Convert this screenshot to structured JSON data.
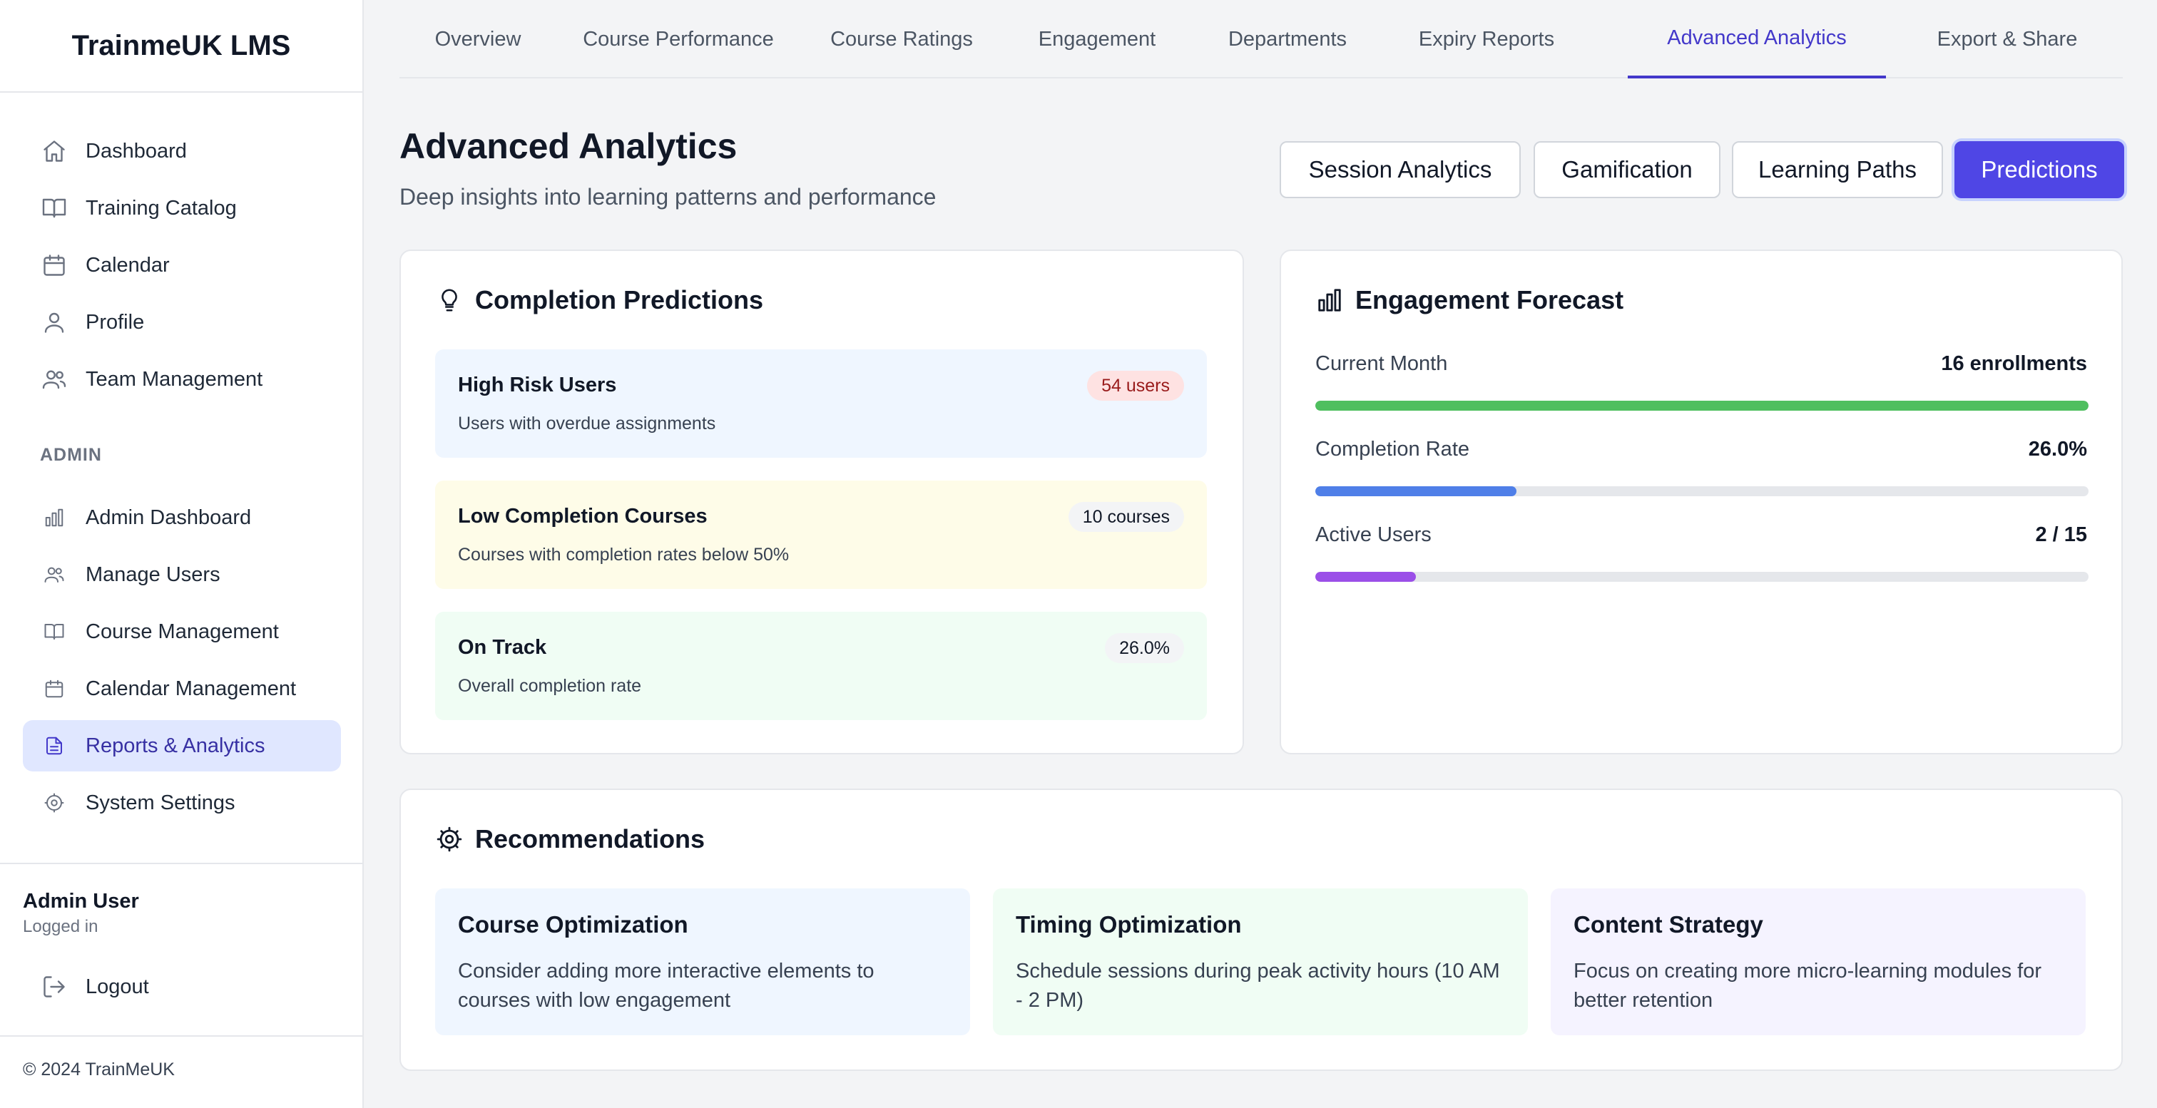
{
  "app": {
    "brand": "TrainmeUK LMS",
    "copyright": "© 2024 TrainMeUK"
  },
  "sidebar": {
    "items": [
      {
        "label": "Dashboard",
        "icon": "home-icon"
      },
      {
        "label": "Training Catalog",
        "icon": "book-icon"
      },
      {
        "label": "Calendar",
        "icon": "calendar-icon"
      },
      {
        "label": "Profile",
        "icon": "user-icon"
      },
      {
        "label": "Team Management",
        "icon": "users-icon"
      }
    ],
    "admin_label": "ADMIN",
    "admin_items": [
      {
        "label": "Admin Dashboard",
        "icon": "bar-chart-icon"
      },
      {
        "label": "Manage Users",
        "icon": "users-icon"
      },
      {
        "label": "Course Management",
        "icon": "book-icon"
      },
      {
        "label": "Calendar Management",
        "icon": "calendar-icon"
      },
      {
        "label": "Reports & Analytics",
        "icon": "file-text-icon",
        "active": true
      },
      {
        "label": "System Settings",
        "icon": "settings-icon"
      }
    ],
    "user": {
      "name": "Admin User",
      "status": "Logged in"
    },
    "logout_label": "Logout"
  },
  "tabs": [
    {
      "label": "Overview"
    },
    {
      "label": "Course Performance"
    },
    {
      "label": "Course Ratings"
    },
    {
      "label": "Engagement"
    },
    {
      "label": "Departments"
    },
    {
      "label": "Expiry Reports"
    },
    {
      "label": "Advanced Analytics",
      "active": true
    },
    {
      "label": "Export & Share"
    }
  ],
  "header": {
    "title": "Advanced Analytics",
    "subtitle": "Deep insights into learning patterns and performance",
    "segments": [
      "Session Analytics",
      "Gamification",
      "Learning Paths",
      "Predictions"
    ],
    "active_segment": "Predictions"
  },
  "predictions": {
    "title": "Completion Predictions",
    "icon": "lightbulb-icon",
    "items": [
      {
        "label": "High Risk Users",
        "desc": "Users with overdue assignments",
        "badge": "54 users"
      },
      {
        "label": "Low Completion Courses",
        "desc": "Courses with completion rates below 50%",
        "badge": "10 courses"
      },
      {
        "label": "On Track",
        "desc": "Overall completion rate",
        "badge": "26.0%"
      }
    ]
  },
  "forecast": {
    "title": "Engagement Forecast",
    "icon": "bar-chart-icon",
    "metrics": [
      {
        "label": "Current Month",
        "value": "16 enrollments",
        "fill": 1.0,
        "color": "#4fbf5f"
      },
      {
        "label": "Completion Rate",
        "value": "26.0%",
        "fill": 0.26,
        "color": "#4f7fe8"
      },
      {
        "label": "Active Users",
        "value": "2 / 15",
        "fill": 0.13,
        "color": "#9b4fe8"
      }
    ]
  },
  "recommendations": {
    "title": "Recommendations",
    "icon": "settings-icon",
    "items": [
      {
        "title": "Course Optimization",
        "text": "Consider adding more interactive elements to courses with low engagement"
      },
      {
        "title": "Timing Optimization",
        "text": "Schedule sessions during peak activity hours (10 AM - 2 PM)"
      },
      {
        "title": "Content Strategy",
        "text": "Focus on creating more micro-learning modules for better retention"
      }
    ]
  },
  "colors": {
    "accent": "#4f46e5",
    "active_nav_bg": "#e0e7ff",
    "active_nav_text": "#3730a3"
  }
}
